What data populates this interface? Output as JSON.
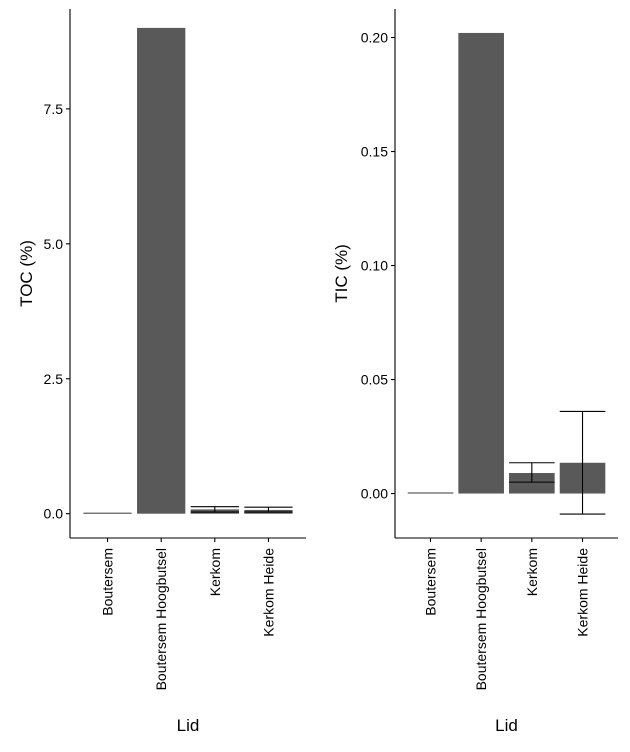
{
  "colors": {
    "bar_fill": "#595959",
    "axis": "#000000",
    "background": "#ffffff"
  },
  "chart_data": [
    {
      "type": "bar",
      "ylabel": "TOC (%)",
      "xlabel": "Lid",
      "categories": [
        "Boutersem",
        "Boutersem Hoogbutsel",
        "Kerkom",
        "Kerkom Heide"
      ],
      "values": [
        0.02,
        9.0,
        0.08,
        0.07
      ],
      "error_bars": [
        null,
        null,
        [
          0.03,
          0.13
        ],
        [
          0.03,
          0.12
        ]
      ],
      "ylim": [
        -0.45,
        9.35
      ],
      "yticks": [
        0.0,
        2.5,
        5.0,
        7.5
      ],
      "ytick_labels": [
        "0.0",
        "2.5",
        "5.0",
        "7.5"
      ],
      "grid": false,
      "legend": "none"
    },
    {
      "type": "bar",
      "ylabel": "TIC (%)",
      "xlabel": "Lid",
      "categories": [
        "Boutersem",
        "Boutersem Hoogbutsel",
        "Kerkom",
        "Kerkom Heide"
      ],
      "values": [
        0.0005,
        0.202,
        0.009,
        0.0135
      ],
      "error_bars": [
        null,
        null,
        [
          0.005,
          0.0135
        ],
        [
          -0.009,
          0.036
        ]
      ],
      "ylim": [
        -0.0195,
        0.2125
      ],
      "yticks": [
        0.0,
        0.05,
        0.1,
        0.15,
        0.2
      ],
      "ytick_labels": [
        "0.00",
        "0.05",
        "0.10",
        "0.15",
        "0.20"
      ],
      "grid": false,
      "legend": "none"
    }
  ]
}
